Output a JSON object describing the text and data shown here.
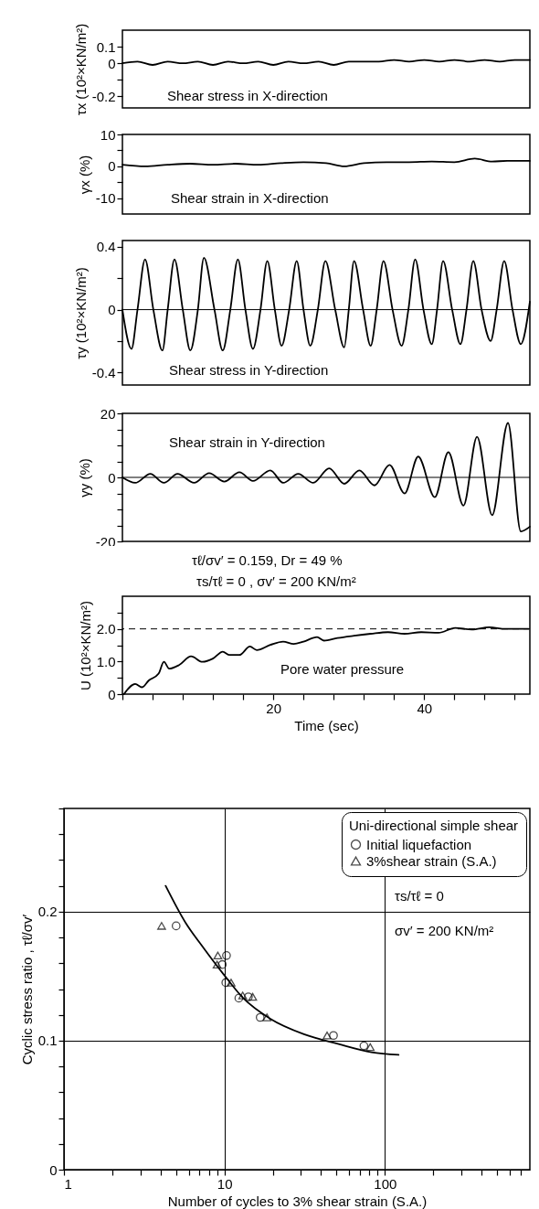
{
  "chart_data": [
    {
      "type": "line",
      "ylabel": "τx (10²×KN/m²)",
      "annotations": [
        "Shear stress in X-direction"
      ],
      "tick_labels": "y",
      "xlim": [
        0,
        54
      ],
      "ylim": [
        -0.27,
        0.2
      ],
      "yticks": [
        0.1,
        0,
        {
          "value": -0.1,
          "label": null
        },
        -0.2
      ],
      "color": "#000000",
      "x": [
        0,
        2,
        4,
        6,
        8,
        10,
        12,
        14,
        16,
        18,
        20,
        22,
        24,
        26,
        28,
        30,
        32,
        34,
        36,
        38,
        40,
        42,
        44,
        46,
        48,
        50,
        52,
        54
      ],
      "values": [
        0,
        0.01,
        -0.01,
        0.01,
        0,
        0.01,
        -0.01,
        0.01,
        0,
        0.01,
        -0.01,
        0.01,
        0,
        0.01,
        -0.01,
        0.01,
        0.01,
        0.01,
        0.02,
        0.01,
        0.02,
        0.01,
        0.02,
        0.01,
        0.02,
        0.01,
        0.02,
        0.02
      ]
    },
    {
      "type": "line",
      "ylabel": "γx (%)",
      "annotations": [
        "Shear strain in X-direction"
      ],
      "tick_labels": "y",
      "xlim": [
        0,
        54
      ],
      "ylim": [
        -15,
        10
      ],
      "yticks": [
        10,
        {
          "value": 5,
          "label": null
        },
        0,
        {
          "value": -5,
          "label": null
        },
        -10
      ],
      "color": "#000000",
      "x": [
        0,
        3,
        6,
        9,
        12,
        15,
        18,
        21,
        24,
        27,
        29.4,
        32,
        35,
        38,
        41,
        44,
        46.7,
        49,
        51,
        54
      ],
      "values": [
        0.5,
        0,
        0.5,
        0.8,
        0.5,
        0.8,
        0.5,
        1,
        1.3,
        1,
        0,
        1,
        1.3,
        1.3,
        1.5,
        1.3,
        2.4,
        1.5,
        1.7,
        1.7
      ]
    },
    {
      "type": "line",
      "ylabel": "τy (10²×KN/m²)",
      "annotations": [
        "Shear stress in Y-direction"
      ],
      "tick_labels": "y",
      "xlim": [
        0,
        54
      ],
      "ylim": [
        -0.48,
        0.44
      ],
      "yticks": [
        0.4,
        {
          "value": 0.2,
          "label": null
        },
        0,
        {
          "value": -0.2,
          "label": null
        },
        -0.4
      ],
      "color": "#000000",
      "ref_lines": [
        {
          "axis": "y",
          "value": 0,
          "color": "#000000"
        }
      ],
      "x": [
        0,
        1.2,
        2.0,
        3.0,
        4.1,
        5.3,
        6.0,
        6.9,
        8.0,
        9.0,
        10.0,
        10.8,
        12.2,
        13.3,
        14.3,
        15.3,
        16.3,
        17.3,
        18.3,
        19.2,
        20.2,
        21.1,
        22.1,
        23.1,
        24.0,
        24.9,
        25.9,
        26.9,
        28.2,
        29.4,
        30.0,
        30.7,
        31.9,
        32.9,
        33.7,
        34.6,
        35.8,
        37.0,
        37.9,
        38.8,
        39.9,
        41.0,
        41.7,
        42.5,
        43.7,
        44.8,
        45.6,
        46.5,
        47.6,
        48.8,
        49.6,
        50.6,
        51.7,
        52.8,
        54
      ],
      "values": [
        0,
        -0.25,
        0,
        0.32,
        0,
        -0.26,
        0,
        0.32,
        0,
        -0.26,
        0,
        0.33,
        0,
        -0.26,
        0,
        0.32,
        0,
        -0.25,
        0,
        0.31,
        0,
        -0.23,
        0,
        0.31,
        0,
        -0.23,
        0,
        0.31,
        0,
        -0.24,
        0,
        0.31,
        0,
        -0.23,
        0,
        0.31,
        0,
        -0.23,
        0,
        0.32,
        0,
        -0.22,
        0,
        0.31,
        0,
        -0.22,
        0,
        0.31,
        0,
        -0.2,
        0,
        0.31,
        0,
        -0.22,
        0.05
      ]
    },
    {
      "type": "line",
      "ylabel": "γy (%)",
      "annotations": [
        "Shear strain in Y-direction"
      ],
      "tick_labels": "y",
      "xlim": [
        0,
        54
      ],
      "ylim": [
        -20,
        20
      ],
      "yticks": [
        20,
        {
          "value": 15,
          "label": null
        },
        {
          "value": 10,
          "label": null
        },
        {
          "value": 5,
          "label": null
        },
        0,
        {
          "value": -5,
          "label": null
        },
        {
          "value": -10,
          "label": null
        },
        {
          "value": -15,
          "label": null
        },
        -20
      ],
      "color": "#000000",
      "ref_lines": [
        {
          "axis": "y",
          "value": 0,
          "color": "#000000"
        }
      ],
      "x": [
        0,
        1.7,
        3.7,
        5.5,
        7.3,
        9.5,
        11.5,
        13.5,
        15.5,
        17.3,
        19.6,
        21.3,
        23.3,
        25.3,
        27.4,
        29.4,
        31.4,
        33.4,
        35.4,
        37.4,
        39.2,
        41.4,
        43.2,
        45.2,
        47.0,
        49.0,
        51.1,
        52.8,
        54
      ],
      "values": [
        0,
        -1.7,
        1.1,
        -1.7,
        1.1,
        -1.7,
        1.3,
        -1.3,
        1.6,
        -1.1,
        2.2,
        -1.7,
        1.1,
        -1.7,
        2.8,
        -2.0,
        2.2,
        -2.5,
        3.9,
        -5.0,
        6.5,
        -6.2,
        7.9,
        -8.8,
        12.7,
        -11.8,
        17.0,
        -16.9,
        -15.4
      ]
    },
    {
      "type": "line",
      "ylabel": "U (10²×KN/m²)",
      "xlabel": "Time (sec)",
      "annotations": [
        "τℓ/σv′ = 0.159, Dr = 49 %",
        "τs/τℓ = 0 , σv′ = 200 KN/m²",
        "Pore water pressure"
      ],
      "xlim": [
        0,
        54
      ],
      "ylim": [
        0,
        3
      ],
      "xticks": [
        {
          "value": 0,
          "label": null
        },
        {
          "value": 4,
          "label": null
        },
        {
          "value": 8,
          "label": null
        },
        {
          "value": 12,
          "label": null
        },
        {
          "value": 16,
          "label": null
        },
        20,
        {
          "value": 24,
          "label": null
        },
        {
          "value": 28,
          "label": null
        },
        {
          "value": 32,
          "label": null
        },
        {
          "value": 36,
          "label": null
        },
        40,
        {
          "value": 44,
          "label": null
        },
        {
          "value": 48,
          "label": null
        },
        {
          "value": 52,
          "label": null
        }
      ],
      "yticks": [
        0,
        {
          "value": 0.5,
          "label": null
        },
        {
          "value": 1,
          "label": "1.0"
        },
        {
          "value": 1.5,
          "label": null
        },
        {
          "value": 2,
          "label": "2.0"
        },
        {
          "value": 2.5,
          "label": null
        }
      ],
      "color": "#000000",
      "ref_lines": [
        {
          "axis": "y",
          "value": 2,
          "color": "#000000",
          "line_style": "dashed"
        }
      ],
      "x": [
        0.2,
        1.7,
        2.6,
        3.5,
        4.8,
        5.5,
        6.2,
        7.5,
        9.1,
        10.6,
        12.0,
        13.3,
        14.2,
        15.5,
        16.9,
        17.8,
        19.6,
        21.3,
        22.7,
        24.0,
        25.8,
        26.7,
        28.5,
        30.7,
        32.9,
        35.2,
        37.4,
        39.6,
        41.9,
        44.1,
        46.3,
        48.6,
        50.8,
        53.8
      ],
      "values": [
        0,
        0.31,
        0.21,
        0.42,
        0.63,
        0.99,
        0.78,
        0.89,
        1.16,
        0.99,
        1.09,
        1.3,
        1.2,
        1.2,
        1.46,
        1.35,
        1.51,
        1.61,
        1.54,
        1.61,
        1.75,
        1.64,
        1.72,
        1.79,
        1.85,
        1.9,
        1.85,
        1.9,
        1.88,
        2.03,
        1.98,
        2.05,
        2.0,
        2.0
      ]
    },
    {
      "type": "scatter",
      "xlabel": "Number of cycles to 3% shear strain (S.A.)",
      "ylabel": "Cyclic stress ratio , τℓ/σv′",
      "legend_title": "Uni-directional simple shear",
      "legend": "top right",
      "grid": true,
      "log": "x",
      "annotations": [
        "τs/τℓ = 0",
        "σv′ = 200 KN/m²"
      ],
      "xlim": [
        1,
        800
      ],
      "ylim": [
        0,
        0.28
      ],
      "xticks": [
        1,
        {
          "value": 2,
          "label": null
        },
        {
          "value": 3,
          "label": null
        },
        {
          "value": 4,
          "label": null
        },
        {
          "value": 5,
          "label": null
        },
        {
          "value": 6,
          "label": null
        },
        {
          "value": 7,
          "label": null
        },
        {
          "value": 8,
          "label": null
        },
        {
          "value": 9,
          "label": null
        },
        10,
        {
          "value": 20,
          "label": null
        },
        {
          "value": 30,
          "label": null
        },
        {
          "value": 40,
          "label": null
        },
        {
          "value": 50,
          "label": null
        },
        {
          "value": 60,
          "label": null
        },
        {
          "value": 70,
          "label": null
        },
        {
          "value": 80,
          "label": null
        },
        {
          "value": 90,
          "label": null
        },
        100,
        {
          "value": 200,
          "label": null
        },
        {
          "value": 300,
          "label": null
        },
        {
          "value": 400,
          "label": null
        },
        {
          "value": 500,
          "label": null
        },
        {
          "value": 600,
          "label": null
        },
        {
          "value": 700,
          "label": null
        }
      ],
      "yticks": [
        0,
        {
          "value": 0.02,
          "label": null
        },
        {
          "value": 0.04,
          "label": null
        },
        {
          "value": 0.06,
          "label": null
        },
        {
          "value": 0.08,
          "label": null
        },
        0.1,
        {
          "value": 0.12,
          "label": null
        },
        {
          "value": 0.14,
          "label": null
        },
        {
          "value": 0.16,
          "label": null
        },
        {
          "value": 0.18,
          "label": null
        },
        0.2,
        {
          "value": 0.22,
          "label": null
        },
        {
          "value": 0.24,
          "label": null
        },
        {
          "value": 0.26,
          "label": null
        },
        {
          "value": 0.28,
          "label": null
        }
      ],
      "series": [
        {
          "name": "Initial liquefaction",
          "type": "scatter",
          "marker": "circle",
          "color": "#000000",
          "x": [
            5.0,
            10.3,
            9.7,
            10.2,
            12.3,
            14.1,
            16.7,
            47.8,
            74
          ],
          "values": [
            0.189,
            0.166,
            0.159,
            0.145,
            0.133,
            0.134,
            0.118,
            0.104,
            0.096
          ]
        },
        {
          "name": "3%shear strain (S.A.)",
          "type": "scatter",
          "marker": "triangle",
          "color": "#000000",
          "x": [
            4.06,
            9.1,
            9.0,
            11.0,
            13.0,
            15.0,
            18.4,
            43.6,
            81
          ],
          "values": [
            0.189,
            0.166,
            0.159,
            0.145,
            0.135,
            0.134,
            0.118,
            0.104,
            0.095
          ]
        },
        {
          "type": "line",
          "color": "#000000",
          "x": [
            4.3,
            5.75,
            7.3,
            9.8,
            13.1,
            19.3,
            31.3,
            50.9,
            82.6,
            121.6
          ],
          "values": [
            0.22,
            0.191,
            0.173,
            0.152,
            0.133,
            0.117,
            0.105,
            0.0975,
            0.091,
            0.089
          ]
        }
      ]
    }
  ]
}
